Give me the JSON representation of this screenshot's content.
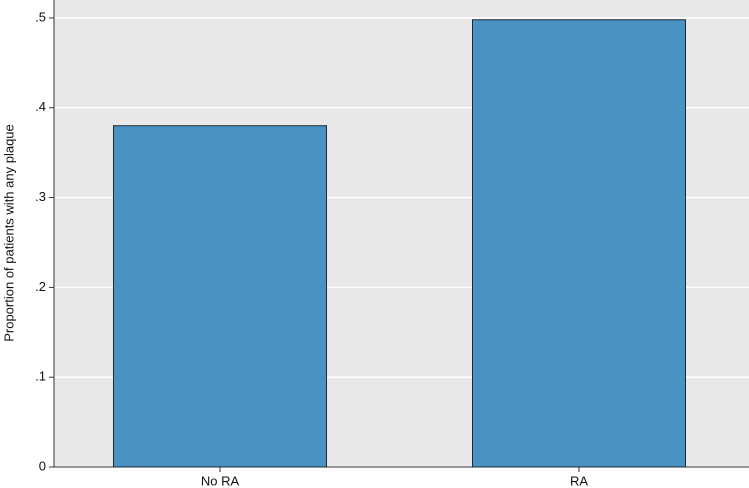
{
  "chart_data": {
    "type": "bar",
    "y_label": "Proportion of patients with any plaque",
    "categories": [
      "No RA",
      "RA"
    ],
    "values": [
      0.38,
      0.498
    ],
    "color": "#4a92c3",
    "ylim": [
      0,
      0.52
    ],
    "yticks": [
      0,
      {
        "value": 0.1,
        "label": ".1"
      },
      {
        "value": 0.2,
        "label": ".2"
      },
      {
        "value": 0.3,
        "label": ".3"
      },
      {
        "value": 0.4,
        "label": ".4"
      },
      {
        "value": 0.5,
        "label": ".5"
      }
    ],
    "grid": true
  }
}
